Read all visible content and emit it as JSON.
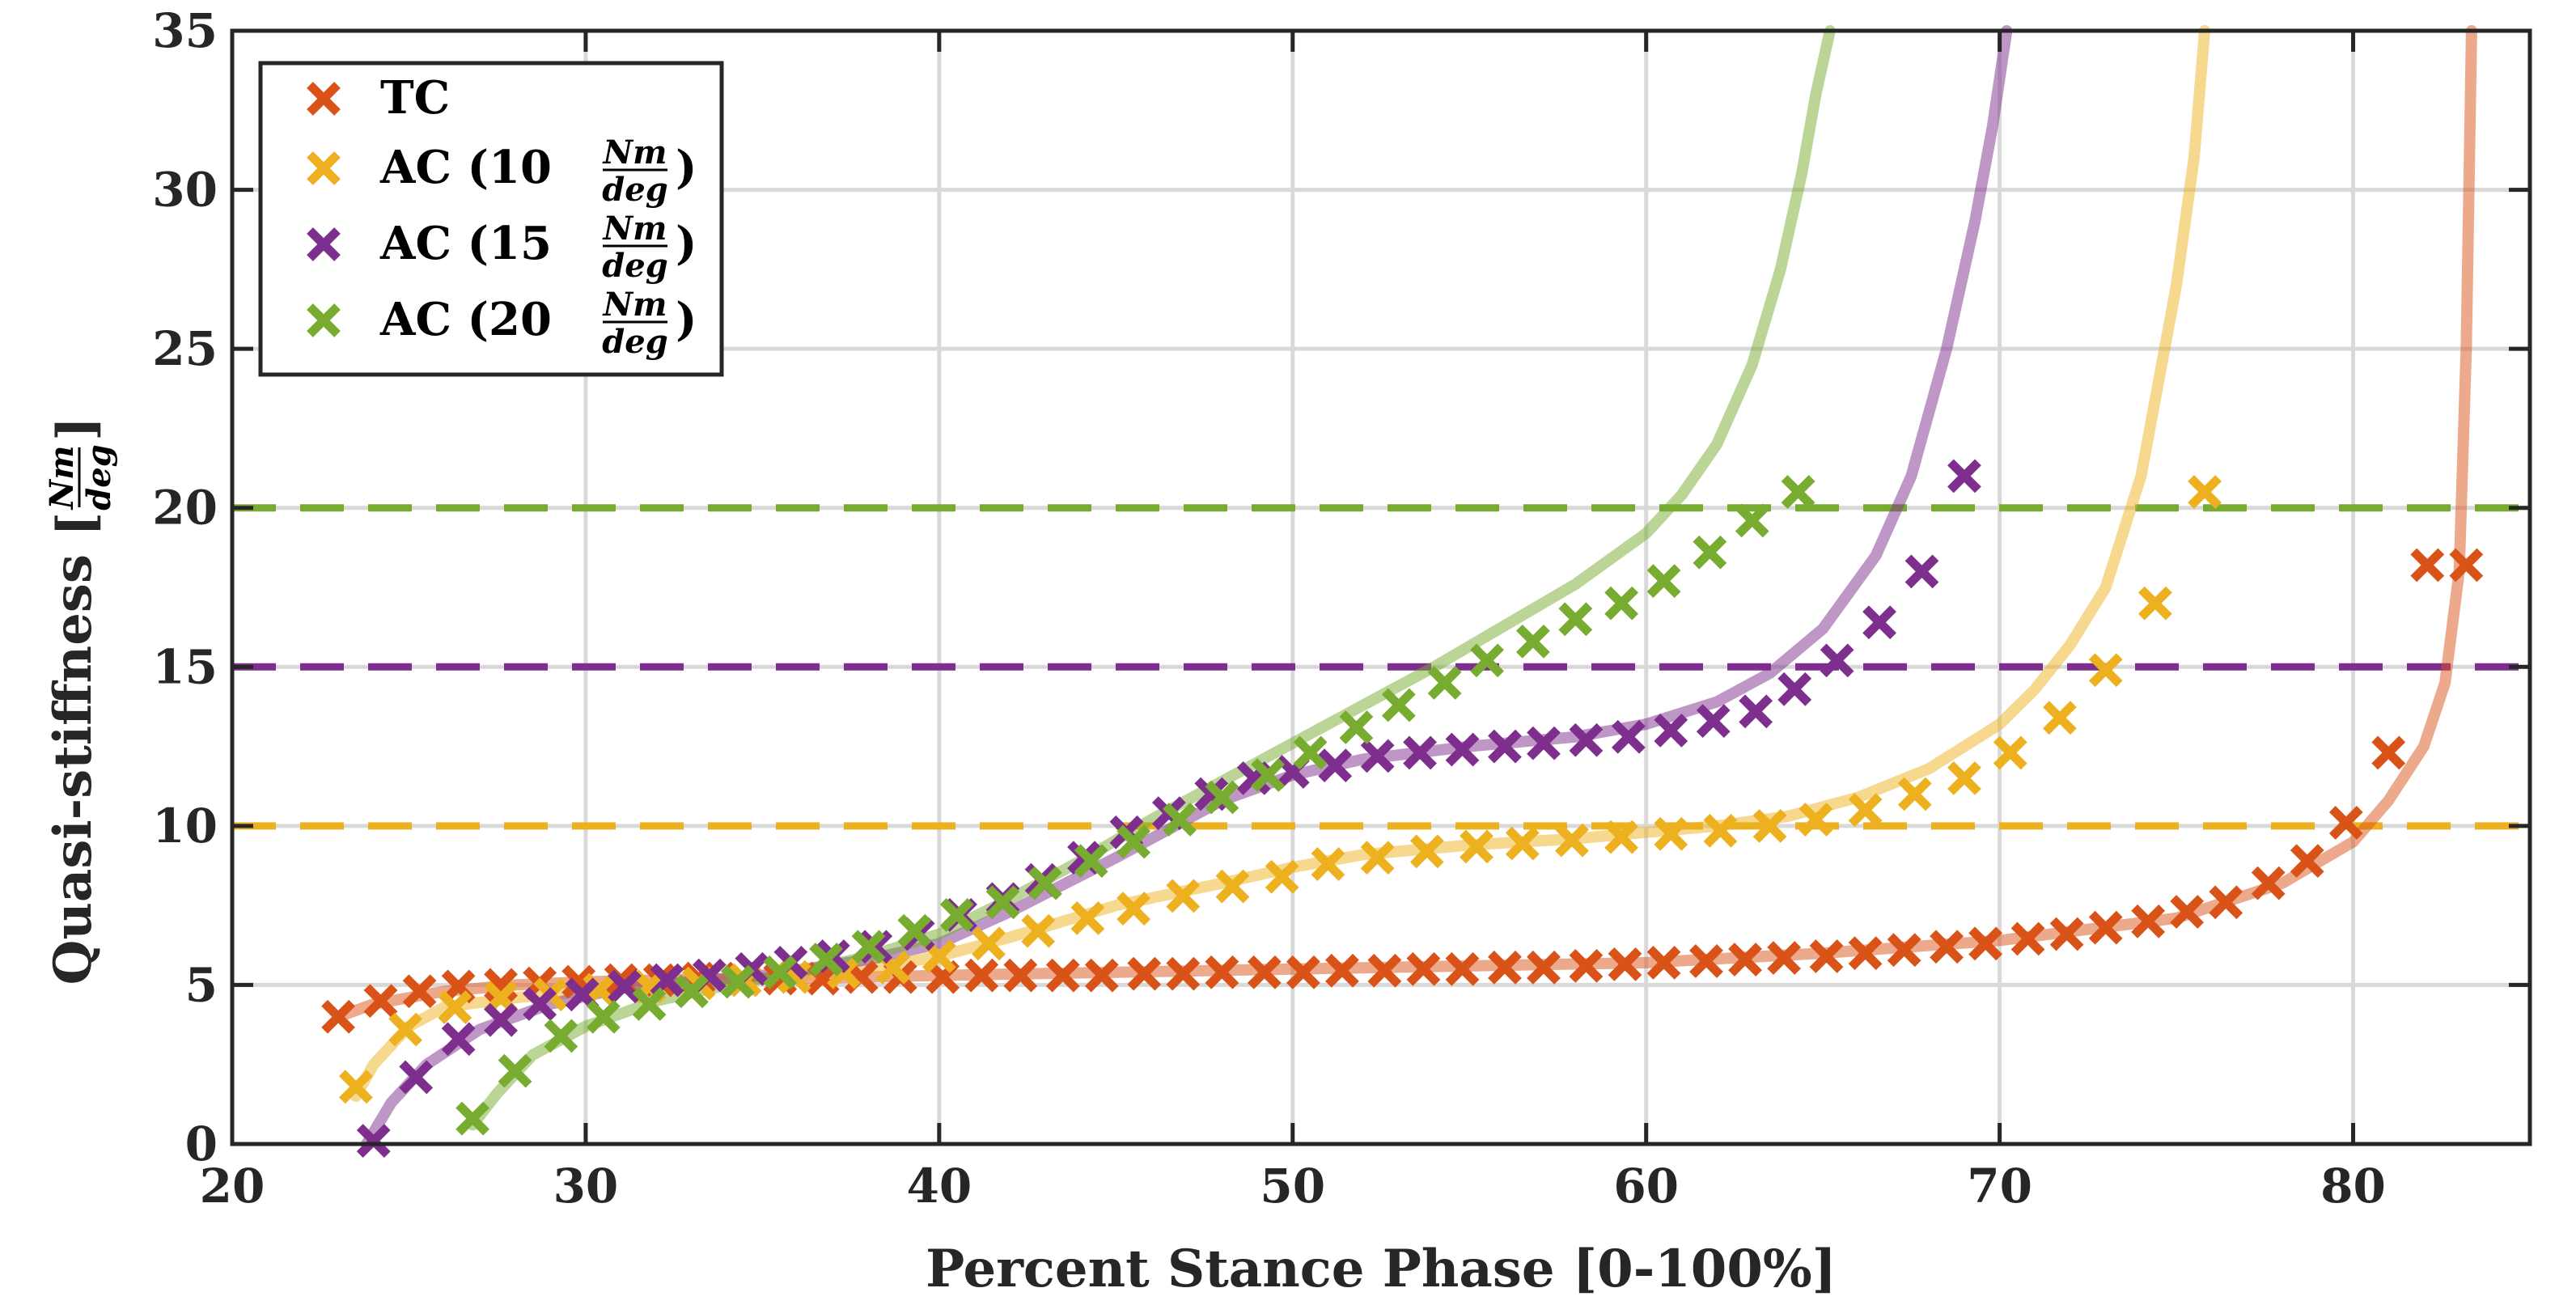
{
  "chart_data": {
    "type": "line",
    "title": "",
    "xlabel": "Percent Stance Phase [0-100%]",
    "ylabel": "Quasi-stiffness",
    "ylabel_unit_num": "Nm",
    "ylabel_unit_den": "deg",
    "xlim": [
      20,
      85
    ],
    "ylim": [
      0,
      35
    ],
    "xticks": [
      20,
      30,
      40,
      50,
      60,
      70,
      80
    ],
    "yticks": [
      0,
      5,
      10,
      15,
      20,
      25,
      30,
      35
    ],
    "grid": true,
    "legend_position": "top-left",
    "reference_lines": [
      {
        "y": 20,
        "color": "#77AC30"
      },
      {
        "y": 15,
        "color": "#7E2F8E"
      },
      {
        "y": 10,
        "color": "#EDB120"
      }
    ],
    "series": [
      {
        "name": "TC",
        "legend_label": "TC",
        "color": "#D95319",
        "curve_x": [
          23,
          24,
          26,
          28,
          30,
          32,
          34,
          36,
          40,
          45,
          50,
          55,
          60,
          65,
          70,
          75,
          78,
          80,
          81,
          82,
          82.6,
          83,
          83.2,
          83.35
        ],
        "curve_y": [
          4.0,
          4.4,
          4.8,
          5.0,
          5.1,
          5.15,
          5.2,
          5.2,
          5.3,
          5.4,
          5.5,
          5.6,
          5.7,
          6.0,
          6.4,
          7.1,
          8.2,
          9.5,
          10.8,
          12.5,
          14.5,
          18.0,
          25.0,
          35.0
        ],
        "x": [
          23.0,
          24.2,
          25.3,
          26.4,
          27.6,
          28.7,
          29.8,
          31.0,
          32.1,
          33.2,
          34.4,
          35.5,
          36.7,
          37.8,
          38.9,
          40.1,
          41.2,
          42.3,
          43.5,
          44.6,
          45.8,
          46.9,
          48.0,
          49.2,
          50.3,
          51.4,
          52.6,
          53.7,
          54.8,
          56.0,
          57.1,
          58.3,
          59.4,
          60.5,
          61.7,
          62.8,
          63.9,
          65.1,
          66.2,
          67.3,
          68.5,
          69.6,
          70.8,
          71.9,
          73.0,
          74.2,
          75.3,
          76.4,
          77.6,
          78.7,
          79.8,
          81.0,
          82.1,
          83.2
        ],
        "y": [
          4.0,
          4.5,
          4.8,
          4.95,
          5.0,
          5.05,
          5.1,
          5.15,
          5.15,
          5.2,
          5.2,
          5.2,
          5.2,
          5.25,
          5.25,
          5.25,
          5.3,
          5.3,
          5.3,
          5.3,
          5.35,
          5.35,
          5.4,
          5.4,
          5.4,
          5.45,
          5.45,
          5.5,
          5.5,
          5.55,
          5.55,
          5.6,
          5.65,
          5.7,
          5.75,
          5.8,
          5.85,
          5.9,
          6.0,
          6.1,
          6.2,
          6.3,
          6.45,
          6.6,
          6.8,
          7.0,
          7.3,
          7.6,
          8.2,
          8.9,
          10.1,
          12.3,
          18.2,
          18.2
        ]
      },
      {
        "name": "AC10",
        "legend_label": "AC (10 ",
        "color": "#EDB120",
        "curve_x": [
          23.5,
          24,
          25,
          26,
          28,
          30,
          32,
          35,
          38,
          40,
          42,
          45,
          48,
          50,
          52,
          55,
          58,
          60,
          62,
          64,
          66,
          68,
          70,
          71,
          72,
          73,
          74,
          75,
          75.5,
          75.8
        ],
        "curve_y": [
          1.5,
          2.5,
          3.7,
          4.3,
          4.6,
          4.8,
          5.0,
          5.2,
          5.5,
          5.9,
          6.5,
          7.5,
          8.2,
          8.7,
          9.1,
          9.4,
          9.6,
          9.8,
          10.0,
          10.3,
          10.9,
          11.8,
          13.2,
          14.3,
          15.7,
          17.5,
          21.0,
          27.0,
          31.0,
          35.0
        ],
        "x": [
          23.5,
          24.9,
          26.3,
          27.6,
          29.0,
          30.4,
          31.8,
          33.2,
          34.5,
          35.9,
          37.3,
          38.7,
          40.0,
          41.4,
          42.8,
          44.2,
          45.5,
          46.9,
          48.3,
          49.7,
          51.0,
          52.4,
          53.8,
          55.2,
          56.5,
          57.9,
          59.3,
          60.7,
          62.1,
          63.5,
          64.8,
          66.2,
          67.6,
          69.0,
          70.3,
          71.7,
          73.0,
          74.4,
          75.8
        ],
        "y": [
          1.8,
          3.6,
          4.3,
          4.6,
          4.7,
          4.85,
          4.95,
          5.05,
          5.15,
          5.25,
          5.4,
          5.55,
          5.9,
          6.3,
          6.7,
          7.1,
          7.4,
          7.8,
          8.1,
          8.4,
          8.8,
          9.0,
          9.2,
          9.35,
          9.45,
          9.55,
          9.65,
          9.75,
          9.85,
          10.0,
          10.2,
          10.5,
          11.0,
          11.5,
          12.3,
          13.4,
          14.9,
          17.0,
          20.5
        ]
      },
      {
        "name": "AC15",
        "legend_label": "AC (15 ",
        "color": "#7E2F8E",
        "curve_x": [
          23.8,
          24.5,
          25.5,
          27,
          29,
          31,
          33,
          35,
          38,
          40,
          42,
          45,
          48,
          50,
          52,
          55,
          58,
          60,
          62,
          63.5,
          65,
          66.5,
          67.5,
          68.5,
          69.3,
          69.8,
          70.2
        ],
        "curve_y": [
          0.0,
          1.3,
          2.5,
          3.6,
          4.4,
          4.9,
          5.1,
          5.3,
          5.8,
          6.3,
          7.3,
          9.0,
          10.8,
          11.6,
          12.1,
          12.5,
          12.8,
          13.2,
          13.9,
          14.8,
          16.2,
          18.5,
          21.0,
          25.0,
          29.0,
          32.0,
          35.0
        ],
        "x": [
          24.0,
          25.2,
          26.4,
          27.6,
          28.7,
          29.9,
          31.1,
          32.3,
          33.5,
          34.7,
          35.8,
          37.0,
          38.2,
          39.4,
          40.6,
          41.8,
          42.9,
          44.1,
          45.3,
          46.5,
          47.7,
          48.9,
          50.0,
          51.2,
          52.4,
          53.6,
          54.8,
          56.0,
          57.1,
          58.3,
          59.5,
          60.7,
          61.9,
          63.1,
          64.2,
          65.4,
          66.6,
          67.8,
          69.0
        ],
        "y": [
          0.1,
          2.1,
          3.3,
          3.9,
          4.4,
          4.7,
          4.95,
          5.15,
          5.3,
          5.5,
          5.7,
          5.9,
          6.2,
          6.6,
          7.2,
          7.7,
          8.3,
          9.0,
          9.8,
          10.4,
          11.0,
          11.5,
          11.7,
          11.9,
          12.2,
          12.3,
          12.4,
          12.5,
          12.6,
          12.7,
          12.8,
          13.0,
          13.3,
          13.6,
          14.3,
          15.2,
          16.4,
          18.0,
          21.0
        ]
      },
      {
        "name": "AC20",
        "legend_label": "AC (20 ",
        "color": "#77AC30",
        "curve_x": [
          26.8,
          27.5,
          28.5,
          30,
          32,
          34,
          36,
          38,
          40,
          42,
          44,
          46,
          48,
          50,
          52,
          54,
          56,
          58,
          60,
          61,
          62,
          63,
          63.8,
          64.4,
          64.8,
          65.2
        ],
        "curve_y": [
          0.6,
          1.6,
          2.8,
          3.7,
          4.5,
          5.0,
          5.4,
          5.9,
          6.6,
          7.7,
          8.9,
          10.2,
          11.4,
          12.6,
          13.8,
          15.0,
          16.3,
          17.6,
          19.2,
          20.4,
          22.0,
          24.5,
          27.5,
          30.5,
          33.0,
          35.0
        ],
        "x": [
          26.8,
          28.0,
          29.3,
          30.5,
          31.8,
          33.0,
          34.3,
          35.5,
          36.8,
          38.0,
          39.3,
          40.5,
          41.8,
          43.0,
          44.3,
          45.5,
          46.8,
          48.0,
          49.3,
          50.5,
          51.8,
          53.0,
          54.3,
          55.5,
          56.8,
          58.0,
          59.3,
          60.5,
          61.8,
          63.0,
          64.3
        ],
        "y": [
          0.8,
          2.3,
          3.4,
          4.0,
          4.4,
          4.8,
          5.1,
          5.4,
          5.8,
          6.2,
          6.7,
          7.2,
          7.6,
          8.2,
          8.9,
          9.5,
          10.2,
          10.9,
          11.6,
          12.3,
          13.1,
          13.8,
          14.5,
          15.2,
          15.8,
          16.5,
          17.0,
          17.7,
          18.6,
          19.6,
          20.5
        ]
      }
    ]
  }
}
